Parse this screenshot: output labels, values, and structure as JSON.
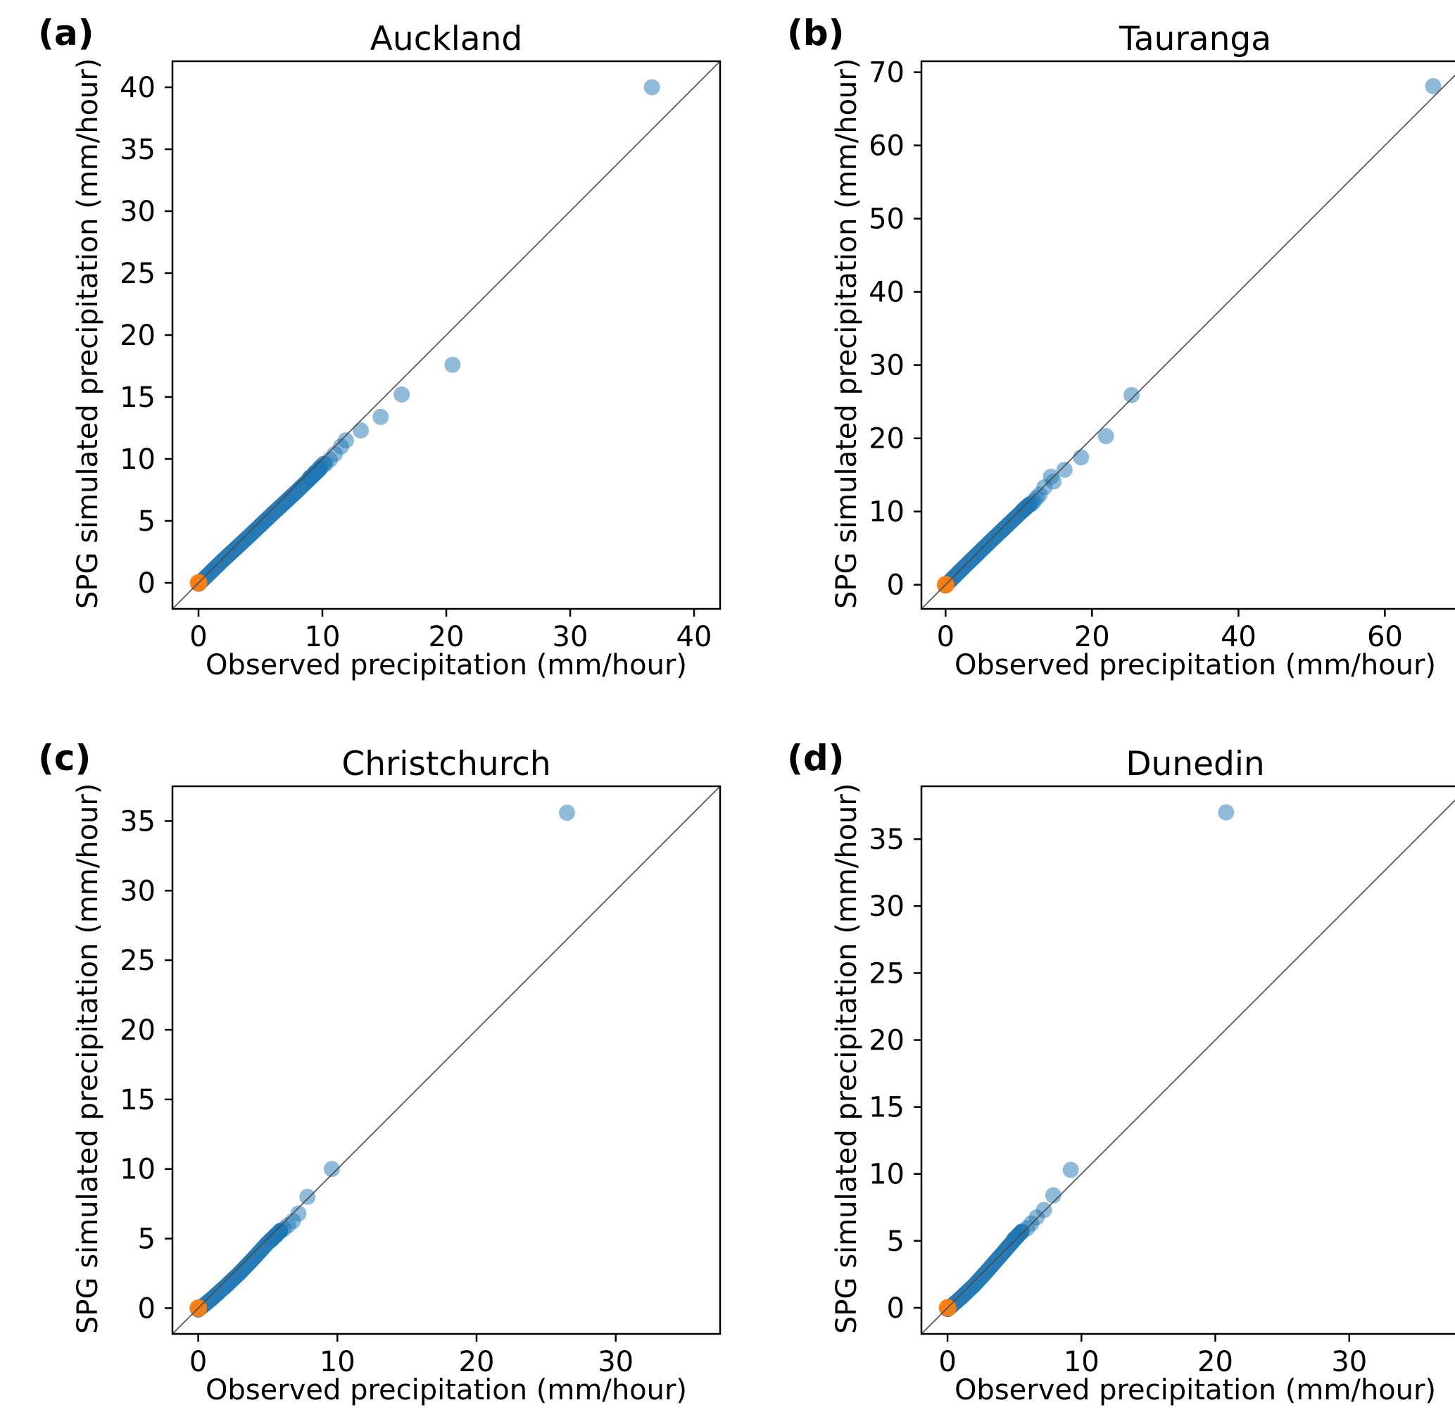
{
  "figure": {
    "background": "#ffffff",
    "colors": {
      "scatter_blue": "#1f77b4",
      "scatter_blue_light_alpha": 0.5,
      "scatter_blue_fade_alpha": 0.72,
      "origin_orange": "#ff7f0e",
      "identity_line": "#4a4a4a",
      "axis": "#000000"
    }
  },
  "chart_data": [
    {
      "panel_letter": "(a)",
      "type": "scatter",
      "title": "Auckland",
      "xlabel": "Observed precipitation (mm/hour)",
      "ylabel": "SPG simulated precipitation (mm/hour)",
      "xlim": [
        -2.1,
        42.1
      ],
      "ylim": [
        -2.1,
        42.1
      ],
      "xticks": [
        0,
        10,
        20,
        30,
        40
      ],
      "yticks": [
        0,
        5,
        10,
        15,
        20,
        25,
        30,
        35,
        40
      ],
      "identity_line": true,
      "series": [
        {
          "name": "dense-quantile-band",
          "role": "band",
          "points": [
            [
              0,
              -0.1
            ],
            [
              2,
              1.85
            ],
            [
              4,
              3.7
            ],
            [
              6,
              5.6
            ],
            [
              8,
              7.45
            ],
            [
              9.8,
              9.2
            ]
          ]
        },
        {
          "name": "quantile-fade",
          "role": "fade",
          "points": [
            [
              9.0,
              8.5
            ],
            [
              9.4,
              8.9
            ],
            [
              9.8,
              9.3
            ],
            [
              10.1,
              9.6
            ]
          ]
        },
        {
          "name": "upper-quantiles",
          "role": "markers",
          "points": [
            [
              36.6,
              40.0
            ],
            [
              20.5,
              17.6
            ],
            [
              16.4,
              15.2
            ],
            [
              14.7,
              13.4
            ],
            [
              13.1,
              12.3
            ],
            [
              11.9,
              11.5
            ],
            [
              11.5,
              11.0
            ],
            [
              11.0,
              10.4
            ],
            [
              10.6,
              9.95
            ],
            [
              10.25,
              9.6
            ]
          ]
        },
        {
          "name": "origin-marker",
          "role": "origin",
          "points": [
            [
              0,
              0
            ]
          ]
        }
      ]
    },
    {
      "panel_letter": "(b)",
      "type": "scatter",
      "title": "Tauranga",
      "xlabel": "Observed precipitation (mm/hour)",
      "ylabel": "SPG simulated precipitation (mm/hour)",
      "xlim": [
        -3.3,
        71.5
      ],
      "ylim": [
        -3.3,
        71.5
      ],
      "xticks": [
        0,
        20,
        40,
        60
      ],
      "yticks": [
        0,
        10,
        20,
        30,
        40,
        50,
        60,
        70
      ],
      "identity_line": true,
      "series": [
        {
          "name": "dense-quantile-band",
          "role": "band",
          "points": [
            [
              0,
              -0.1
            ],
            [
              2,
              1.9
            ],
            [
              4,
              3.85
            ],
            [
              6,
              5.8
            ],
            [
              8,
              7.7
            ],
            [
              10,
              9.6
            ],
            [
              11.4,
              10.9
            ]
          ]
        },
        {
          "name": "quantile-fade",
          "role": "fade",
          "points": [
            [
              10.6,
              10.2
            ],
            [
              11.0,
              10.55
            ],
            [
              11.45,
              10.95
            ]
          ]
        },
        {
          "name": "upper-quantiles",
          "role": "markers",
          "points": [
            [
              66.6,
              68.1
            ],
            [
              25.4,
              25.9
            ],
            [
              21.9,
              20.3
            ],
            [
              18.5,
              17.4
            ],
            [
              16.25,
              15.7
            ],
            [
              14.4,
              14.75
            ],
            [
              14.75,
              14.1
            ],
            [
              13.5,
              13.3
            ],
            [
              12.85,
              12.3
            ],
            [
              12.4,
              11.85
            ],
            [
              12.05,
              11.4
            ],
            [
              11.75,
              11.05
            ]
          ]
        },
        {
          "name": "origin-marker",
          "role": "origin",
          "points": [
            [
              0,
              0
            ]
          ]
        }
      ]
    },
    {
      "panel_letter": "(c)",
      "type": "scatter",
      "title": "Christchurch",
      "xlabel": "Observed precipitation (mm/hour)",
      "ylabel": "SPG simulated precipitation (mm/hour)",
      "xlim": [
        -1.85,
        37.5
      ],
      "ylim": [
        -1.85,
        37.5
      ],
      "xticks": [
        0,
        10,
        20,
        30
      ],
      "yticks": [
        0,
        5,
        10,
        15,
        20,
        25,
        30,
        35
      ],
      "identity_line": true,
      "series": [
        {
          "name": "dense-quantile-band",
          "role": "band",
          "points": [
            [
              0,
              -0.12
            ],
            [
              1,
              0.7
            ],
            [
              2,
              1.6
            ],
            [
              3,
              2.55
            ],
            [
              4,
              3.6
            ],
            [
              5,
              4.7
            ],
            [
              5.9,
              5.55
            ]
          ]
        },
        {
          "name": "quantile-fade",
          "role": "fade",
          "points": [
            [
              5.3,
              4.95
            ],
            [
              5.6,
              5.25
            ],
            [
              5.9,
              5.55
            ]
          ]
        },
        {
          "name": "upper-quantiles",
          "role": "markers",
          "points": [
            [
              26.5,
              35.6
            ],
            [
              9.6,
              10.0
            ],
            [
              7.85,
              8.0
            ],
            [
              7.2,
              6.8
            ],
            [
              6.8,
              6.25
            ],
            [
              6.45,
              5.95
            ],
            [
              6.15,
              5.7
            ]
          ]
        },
        {
          "name": "origin-marker",
          "role": "origin",
          "points": [
            [
              0,
              0
            ]
          ]
        }
      ]
    },
    {
      "panel_letter": "(d)",
      "type": "scatter",
      "title": "Dunedin",
      "xlabel": "Observed precipitation (mm/hour)",
      "ylabel": "SPG simulated precipitation (mm/hour)",
      "xlim": [
        -1.95,
        38.95
      ],
      "ylim": [
        -1.95,
        38.95
      ],
      "xticks": [
        0,
        10,
        20,
        30
      ],
      "yticks": [
        0,
        5,
        10,
        15,
        20,
        25,
        30,
        35
      ],
      "identity_line": true,
      "series": [
        {
          "name": "dense-quantile-band",
          "role": "band",
          "points": [
            [
              0,
              -0.12
            ],
            [
              1,
              0.75
            ],
            [
              2,
              1.7
            ],
            [
              3,
              2.8
            ],
            [
              4,
              3.95
            ],
            [
              5,
              5.1
            ],
            [
              5.5,
              5.65
            ]
          ]
        },
        {
          "name": "quantile-fade",
          "role": "fade",
          "points": [
            [
              5.0,
              5.15
            ],
            [
              5.3,
              5.45
            ],
            [
              5.55,
              5.7
            ]
          ]
        },
        {
          "name": "upper-quantiles",
          "role": "markers",
          "points": [
            [
              20.8,
              37.0
            ],
            [
              9.2,
              10.3
            ],
            [
              7.9,
              8.4
            ],
            [
              7.2,
              7.3
            ],
            [
              6.65,
              6.75
            ],
            [
              6.25,
              6.3
            ],
            [
              5.95,
              5.95
            ]
          ]
        },
        {
          "name": "origin-marker",
          "role": "origin",
          "points": [
            [
              0,
              0
            ]
          ]
        }
      ]
    }
  ]
}
